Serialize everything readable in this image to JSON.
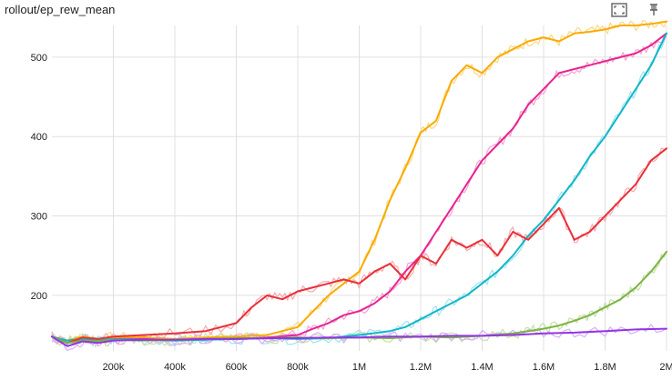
{
  "card": {
    "title": "rollout/ep_rew_mean",
    "icons": [
      "fit-domain-icon",
      "pin-icon"
    ]
  },
  "chart_data": {
    "type": "line",
    "title": "rollout/ep_rew_mean",
    "xlabel": "",
    "ylabel": "",
    "xlim": [
      0,
      2000000
    ],
    "ylim": [
      130,
      540
    ],
    "grid": true,
    "smoothing": "light raw trace behind a darker smoothed line",
    "x_ticks": [
      {
        "value": 200000,
        "label": "200k"
      },
      {
        "value": 400000,
        "label": "400k"
      },
      {
        "value": 600000,
        "label": "600k"
      },
      {
        "value": 800000,
        "label": "800k"
      },
      {
        "value": 1000000,
        "label": "1M"
      },
      {
        "value": 1200000,
        "label": "1.2M"
      },
      {
        "value": 1400000,
        "label": "1.4M"
      },
      {
        "value": 1600000,
        "label": "1.6M"
      },
      {
        "value": 1800000,
        "label": "1.8M"
      },
      {
        "value": 2000000,
        "label": "2M"
      }
    ],
    "y_ticks": [
      {
        "value": 200,
        "label": "200"
      },
      {
        "value": 300,
        "label": "300"
      },
      {
        "value": 400,
        "label": "400"
      },
      {
        "value": 500,
        "label": "500"
      }
    ],
    "series": [
      {
        "color": "#f9ab00",
        "raw_color": "#fcd783",
        "x": [
          0,
          50000,
          100000,
          150000,
          200000,
          300000,
          400000,
          500000,
          600000,
          700000,
          800000,
          850000,
          900000,
          950000,
          1000000,
          1050000,
          1100000,
          1150000,
          1200000,
          1250000,
          1300000,
          1350000,
          1400000,
          1450000,
          1500000,
          1550000,
          1600000,
          1650000,
          1700000,
          1750000,
          1800000,
          1850000,
          1900000,
          1950000,
          2000000
        ],
        "y": [
          148,
          143,
          148,
          145,
          147,
          147,
          145,
          147,
          148,
          150,
          160,
          180,
          200,
          215,
          230,
          270,
          320,
          360,
          405,
          420,
          470,
          490,
          480,
          500,
          510,
          520,
          525,
          520,
          530,
          532,
          535,
          540,
          540,
          542,
          545
        ]
      },
      {
        "color": "#e52592",
        "raw_color": "#f5a3cf",
        "x": [
          0,
          50000,
          100000,
          150000,
          200000,
          300000,
          400000,
          500000,
          600000,
          700000,
          800000,
          850000,
          900000,
          950000,
          1000000,
          1050000,
          1100000,
          1150000,
          1200000,
          1250000,
          1300000,
          1350000,
          1400000,
          1450000,
          1500000,
          1550000,
          1600000,
          1650000,
          1700000,
          1750000,
          1800000,
          1850000,
          1900000,
          1950000,
          2000000
        ],
        "y": [
          148,
          140,
          145,
          142,
          145,
          145,
          143,
          145,
          145,
          147,
          150,
          158,
          165,
          175,
          180,
          190,
          205,
          230,
          250,
          280,
          310,
          340,
          370,
          390,
          410,
          440,
          460,
          480,
          485,
          490,
          495,
          500,
          505,
          515,
          530
        ]
      },
      {
        "color": "#12b5cb",
        "raw_color": "#9de5ef",
        "x": [
          0,
          50000,
          100000,
          150000,
          200000,
          300000,
          400000,
          500000,
          600000,
          700000,
          800000,
          900000,
          1000000,
          1100000,
          1150000,
          1200000,
          1250000,
          1300000,
          1350000,
          1400000,
          1450000,
          1500000,
          1550000,
          1600000,
          1650000,
          1700000,
          1750000,
          1800000,
          1850000,
          1900000,
          1950000,
          2000000
        ],
        "y": [
          148,
          143,
          145,
          143,
          145,
          144,
          143,
          144,
          145,
          146,
          145,
          146,
          150,
          155,
          160,
          170,
          180,
          190,
          200,
          215,
          230,
          250,
          275,
          295,
          320,
          345,
          375,
          400,
          430,
          460,
          490,
          530
        ]
      },
      {
        "color": "#e8303a",
        "raw_color": "#f5aaae",
        "x": [
          0,
          50000,
          100000,
          150000,
          200000,
          300000,
          400000,
          500000,
          600000,
          650000,
          700000,
          750000,
          800000,
          850000,
          900000,
          950000,
          1000000,
          1050000,
          1100000,
          1150000,
          1200000,
          1250000,
          1300000,
          1350000,
          1400000,
          1450000,
          1500000,
          1550000,
          1600000,
          1650000,
          1700000,
          1750000,
          1800000,
          1850000,
          1900000,
          1950000,
          2000000
        ],
        "y": [
          148,
          140,
          147,
          145,
          148,
          150,
          152,
          155,
          165,
          185,
          200,
          195,
          205,
          210,
          215,
          220,
          215,
          230,
          240,
          220,
          250,
          240,
          270,
          260,
          270,
          250,
          280,
          270,
          290,
          310,
          270,
          280,
          300,
          320,
          340,
          370,
          385
        ]
      },
      {
        "color": "#7cb342",
        "raw_color": "#c5e1a5",
        "x": [
          0,
          50000,
          100000,
          150000,
          200000,
          300000,
          400000,
          500000,
          600000,
          700000,
          800000,
          900000,
          1000000,
          1100000,
          1200000,
          1300000,
          1400000,
          1500000,
          1550000,
          1600000,
          1650000,
          1700000,
          1750000,
          1800000,
          1850000,
          1900000,
          1950000,
          2000000
        ],
        "y": [
          148,
          140,
          143,
          142,
          144,
          143,
          144,
          145,
          146,
          146,
          147,
          146,
          147,
          146,
          148,
          147,
          149,
          152,
          155,
          158,
          162,
          168,
          175,
          185,
          195,
          210,
          230,
          255
        ]
      },
      {
        "color": "#9334e6",
        "raw_color": "#d7aefb",
        "x": [
          0,
          50000,
          100000,
          150000,
          200000,
          300000,
          400000,
          500000,
          600000,
          700000,
          800000,
          900000,
          1000000,
          1100000,
          1200000,
          1300000,
          1400000,
          1500000,
          1600000,
          1700000,
          1800000,
          1900000,
          2000000
        ],
        "y": [
          148,
          136,
          142,
          140,
          143,
          144,
          144,
          145,
          145,
          146,
          146,
          147,
          147,
          148,
          148,
          149,
          149,
          150,
          152,
          153,
          155,
          157,
          158
        ]
      }
    ]
  }
}
